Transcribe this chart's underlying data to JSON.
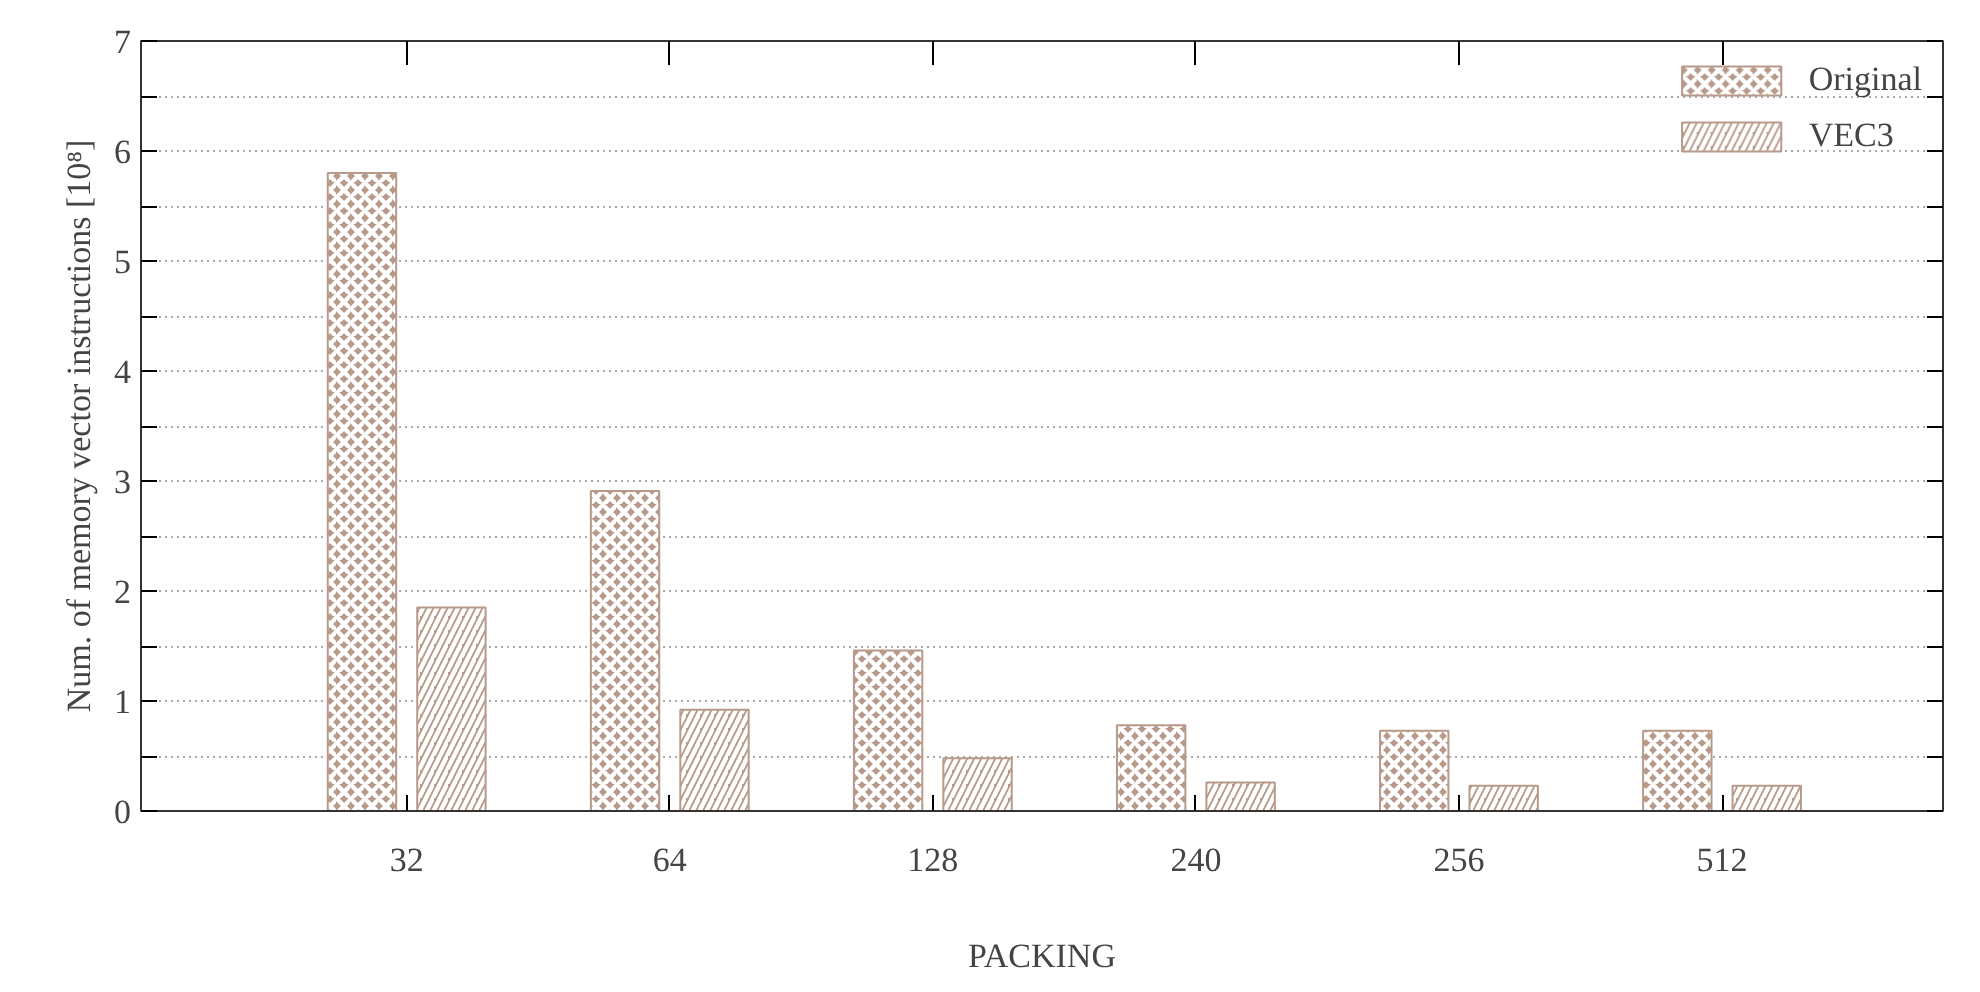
{
  "chart_data": {
    "type": "bar",
    "xlabel": "PACKING",
    "ylabel": "Num. of memory vector instructions [10⁸]",
    "categories": [
      "32",
      "64",
      "128",
      "240",
      "256",
      "512"
    ],
    "series": [
      {
        "name": "Original",
        "color": "#b89a8a",
        "values": [
          5.8,
          2.91,
          1.46,
          0.78,
          0.73,
          0.73
        ]
      },
      {
        "name": "VEC3",
        "color": "#b89a8a",
        "values": [
          1.85,
          0.92,
          0.48,
          0.26,
          0.23,
          0.23
        ]
      }
    ],
    "ylim": [
      0,
      7
    ],
    "yticks": [
      0,
      {
        "value": 0.5,
        "label": null
      },
      1,
      {
        "value": 1.5,
        "label": null
      },
      2,
      {
        "value": 2.5,
        "label": null
      },
      3,
      {
        "value": 3.5,
        "label": null
      },
      4,
      {
        "value": 4.5,
        "label": null
      },
      5,
      {
        "value": 5.5,
        "label": null
      },
      6,
      {
        "value": 6.5,
        "label": null
      },
      7
    ],
    "grid": "y",
    "legend": "top right"
  }
}
